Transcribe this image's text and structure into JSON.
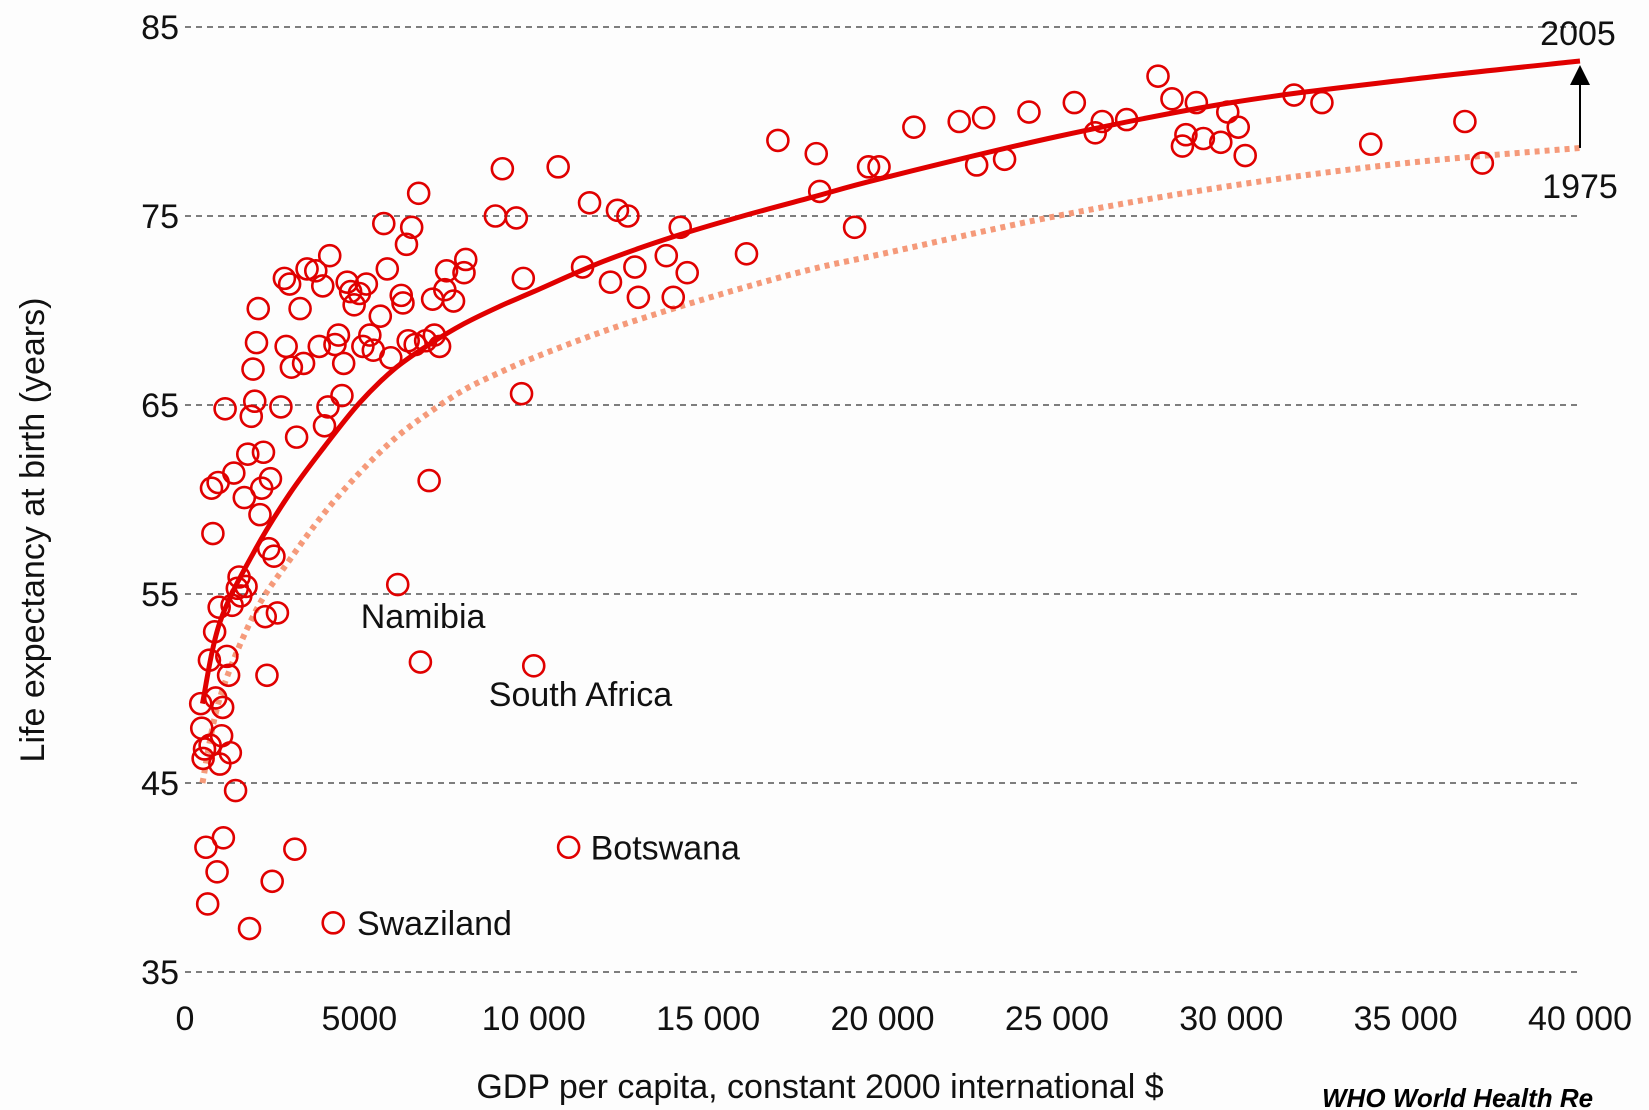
{
  "chart_data": {
    "type": "scatter",
    "xlabel": "GDP per capita, constant 2000 international $",
    "ylabel": "Life expectancy at birth (years)",
    "xlim": [
      0,
      40000
    ],
    "ylim": [
      35,
      85
    ],
    "xticks": [
      "0",
      "5000",
      "10 000",
      "15 000",
      "20 000",
      "25 000",
      "30 000",
      "35 000",
      "40 000"
    ],
    "yticks": [
      "35",
      "45",
      "55",
      "65",
      "75",
      "85"
    ],
    "grid": "horizontal-dashed",
    "colors": {
      "points": "#e00000",
      "curve_2005": "#e00000",
      "curve_1975": "#f59a7a",
      "grid": "#555555"
    },
    "curves": [
      {
        "name": "2005",
        "style": "solid",
        "x": [
          500,
          1000,
          2000,
          3000,
          4000,
          5000,
          6000,
          7000,
          8000,
          9000,
          10000,
          12000,
          14000,
          16000,
          18000,
          20000,
          25000,
          30000,
          35000,
          40000
        ],
        "y": [
          49.2,
          53.5,
          57.3,
          60.3,
          62.8,
          65.1,
          66.9,
          68.2,
          69.3,
          70.2,
          71.0,
          72.6,
          73.9,
          75.0,
          76.0,
          77.0,
          79.2,
          81.0,
          82.2,
          83.2
        ]
      },
      {
        "name": "1975",
        "style": "dotted",
        "x": [
          500,
          1000,
          2000,
          3000,
          4000,
          5000,
          6000,
          7000,
          8000,
          9000,
          10000,
          12000,
          14000,
          16000,
          18000,
          20000,
          25000,
          30000,
          35000,
          40000
        ],
        "y": [
          45.0,
          49.5,
          54.0,
          56.8,
          59.3,
          61.4,
          63.2,
          64.6,
          65.8,
          66.7,
          67.5,
          68.9,
          70.1,
          71.2,
          72.2,
          73.0,
          75.0,
          76.6,
          77.8,
          78.6
        ]
      }
    ],
    "annotations": [
      {
        "text": "2005",
        "x": 40000,
        "y": 83.2
      },
      {
        "text": "1975",
        "x": 40000,
        "y": 78.6
      },
      {
        "text": "Namibia",
        "x": 6300,
        "y": 51.4
      },
      {
        "text": "South Africa",
        "x": 9800,
        "y": 51.2
      },
      {
        "text": "Botswana",
        "x": 11000,
        "y": 41.6
      },
      {
        "text": "Swaziland",
        "x": 4300,
        "y": 37.6
      }
    ],
    "points": [
      [
        450,
        49.2
      ],
      [
        480,
        47.9
      ],
      [
        520,
        46.3
      ],
      [
        560,
        46.8
      ],
      [
        600,
        41.6
      ],
      [
        650,
        38.6
      ],
      [
        700,
        51.5
      ],
      [
        720,
        47.0
      ],
      [
        760,
        60.6
      ],
      [
        800,
        58.2
      ],
      [
        850,
        53.0
      ],
      [
        880,
        49.5
      ],
      [
        920,
        40.3
      ],
      [
        950,
        60.9
      ],
      [
        980,
        54.3
      ],
      [
        1000,
        46.0
      ],
      [
        1050,
        47.5
      ],
      [
        1080,
        49.0
      ],
      [
        1100,
        42.1
      ],
      [
        1150,
        64.8
      ],
      [
        1200,
        51.7
      ],
      [
        1250,
        50.7
      ],
      [
        1300,
        46.6
      ],
      [
        1350,
        54.4
      ],
      [
        1400,
        61.4
      ],
      [
        1450,
        44.6
      ],
      [
        1500,
        55.3
      ],
      [
        1550,
        55.9
      ],
      [
        1600,
        54.9
      ],
      [
        1700,
        60.1
      ],
      [
        1750,
        55.4
      ],
      [
        1800,
        62.4
      ],
      [
        1850,
        37.3
      ],
      [
        1900,
        64.4
      ],
      [
        1950,
        66.9
      ],
      [
        2000,
        65.2
      ],
      [
        2050,
        68.3
      ],
      [
        2100,
        70.1
      ],
      [
        2150,
        59.2
      ],
      [
        2200,
        60.6
      ],
      [
        2250,
        62.5
      ],
      [
        2300,
        53.8
      ],
      [
        2350,
        50.7
      ],
      [
        2400,
        57.4
      ],
      [
        2450,
        61.1
      ],
      [
        2500,
        39.8
      ],
      [
        2550,
        57.0
      ],
      [
        2650,
        54.0
      ],
      [
        2750,
        64.9
      ],
      [
        2850,
        71.7
      ],
      [
        2900,
        68.1
      ],
      [
        3000,
        71.4
      ],
      [
        3050,
        67.0
      ],
      [
        3150,
        41.5
      ],
      [
        3200,
        63.3
      ],
      [
        3300,
        70.1
      ],
      [
        3400,
        67.2
      ],
      [
        3500,
        72.2
      ],
      [
        3750,
        72.1
      ],
      [
        3850,
        68.1
      ],
      [
        3950,
        71.3
      ],
      [
        4000,
        63.9
      ],
      [
        4100,
        64.9
      ],
      [
        4150,
        72.9
      ],
      [
        4250,
        37.6
      ],
      [
        4300,
        68.2
      ],
      [
        4400,
        68.7
      ],
      [
        4500,
        65.5
      ],
      [
        4550,
        67.2
      ],
      [
        4650,
        71.5
      ],
      [
        4750,
        71.0
      ],
      [
        4850,
        70.3
      ],
      [
        5000,
        70.9
      ],
      [
        5100,
        68.1
      ],
      [
        5200,
        71.4
      ],
      [
        5300,
        68.7
      ],
      [
        5400,
        67.9
      ],
      [
        5600,
        69.7
      ],
      [
        5700,
        74.6
      ],
      [
        5800,
        72.2
      ],
      [
        5900,
        67.5
      ],
      [
        6100,
        55.5
      ],
      [
        6200,
        70.8
      ],
      [
        6250,
        70.4
      ],
      [
        6350,
        73.5
      ],
      [
        6400,
        68.4
      ],
      [
        6500,
        74.4
      ],
      [
        6600,
        68.2
      ],
      [
        6700,
        76.2
      ],
      [
        6750,
        51.4
      ],
      [
        6900,
        68.4
      ],
      [
        7000,
        61.0
      ],
      [
        7100,
        70.6
      ],
      [
        7150,
        68.7
      ],
      [
        7300,
        68.1
      ],
      [
        7450,
        71.1
      ],
      [
        7500,
        72.1
      ],
      [
        7700,
        70.5
      ],
      [
        8000,
        72.0
      ],
      [
        8050,
        72.7
      ],
      [
        8900,
        75.0
      ],
      [
        9100,
        77.5
      ],
      [
        9500,
        74.9
      ],
      [
        9650,
        65.6
      ],
      [
        9700,
        71.7
      ],
      [
        10000,
        51.2
      ],
      [
        11000,
        41.6
      ],
      [
        10700,
        77.6
      ],
      [
        11400,
        72.3
      ],
      [
        11600,
        75.7
      ],
      [
        12200,
        71.5
      ],
      [
        12400,
        75.3
      ],
      [
        12700,
        75.0
      ],
      [
        12900,
        72.3
      ],
      [
        13000,
        70.7
      ],
      [
        13800,
        72.9
      ],
      [
        14000,
        70.7
      ],
      [
        14200,
        74.4
      ],
      [
        14400,
        72.0
      ],
      [
        16100,
        73.0
      ],
      [
        17000,
        79.0
      ],
      [
        18100,
        78.3
      ],
      [
        18200,
        76.3
      ],
      [
        19200,
        74.4
      ],
      [
        19600,
        77.6
      ],
      [
        19900,
        77.6
      ],
      [
        20900,
        79.7
      ],
      [
        22200,
        80.0
      ],
      [
        22700,
        77.7
      ],
      [
        22900,
        80.2
      ],
      [
        23500,
        78.0
      ],
      [
        24200,
        80.5
      ],
      [
        25500,
        81.0
      ],
      [
        26100,
        79.4
      ],
      [
        26300,
        80.0
      ],
      [
        27000,
        80.1
      ],
      [
        27900,
        82.4
      ],
      [
        28300,
        81.2
      ],
      [
        28600,
        78.7
      ],
      [
        28700,
        79.3
      ],
      [
        29000,
        81.0
      ],
      [
        29200,
        79.1
      ],
      [
        29700,
        78.9
      ],
      [
        29900,
        80.5
      ],
      [
        30200,
        79.7
      ],
      [
        30400,
        78.2
      ],
      [
        31800,
        81.4
      ],
      [
        32600,
        81.0
      ],
      [
        34000,
        78.8
      ],
      [
        36700,
        80.0
      ],
      [
        37200,
        77.8
      ]
    ]
  },
  "source_credit": "WHO World Health Re"
}
